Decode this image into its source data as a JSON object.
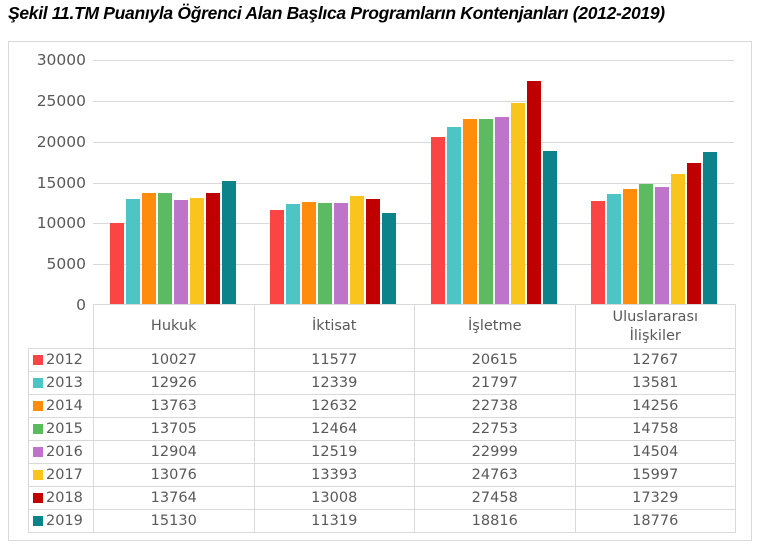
{
  "title": "Şekil 11.TM Puanıyla Öğrenci Alan Başlıca Programların Kontenjanları (2012-2019)",
  "chart_data": {
    "type": "bar",
    "title": "Şekil 11.TM Puanıyla Öğrenci Alan Başlıca Programların Kontenjanları (2012-2019)",
    "categories": [
      "Hukuk",
      "İktisat",
      "İşletme",
      "Uluslararası İlişkiler"
    ],
    "series": [
      {
        "name": "2012",
        "color": "#FB4444",
        "values": [
          10027,
          11577,
          20615,
          12767
        ]
      },
      {
        "name": "2013",
        "color": "#4EC5C5",
        "values": [
          12926,
          12339,
          21797,
          13581
        ]
      },
      {
        "name": "2014",
        "color": "#FF8C0A",
        "values": [
          13763,
          12632,
          22738,
          14256
        ]
      },
      {
        "name": "2015",
        "color": "#5CBB60",
        "values": [
          13705,
          12464,
          22753,
          14758
        ]
      },
      {
        "name": "2016",
        "color": "#BD74C9",
        "values": [
          12904,
          12519,
          22999,
          14504
        ]
      },
      {
        "name": "2017",
        "color": "#F9C51D",
        "values": [
          13076,
          13393,
          24763,
          15997
        ]
      },
      {
        "name": "2018",
        "color": "#C00000",
        "values": [
          13764,
          13008,
          27458,
          17329
        ]
      },
      {
        "name": "2019",
        "color": "#0B8389",
        "values": [
          15130,
          11319,
          18816,
          18776
        ]
      }
    ],
    "xlabel": "",
    "ylabel": "",
    "ylim": [
      0,
      30000
    ],
    "yticks": [
      0,
      5000,
      10000,
      15000,
      20000,
      25000,
      30000
    ],
    "grid": true,
    "legend_position": "data-table-left-column"
  },
  "colors": {
    "grid": "#d9d9d9",
    "table_border": "#d9d9d9",
    "axis_text": "#595959",
    "table_text": "#595959",
    "title_text": "#000000",
    "figure_border": "#d9d9d9",
    "background": "#ffffff"
  }
}
